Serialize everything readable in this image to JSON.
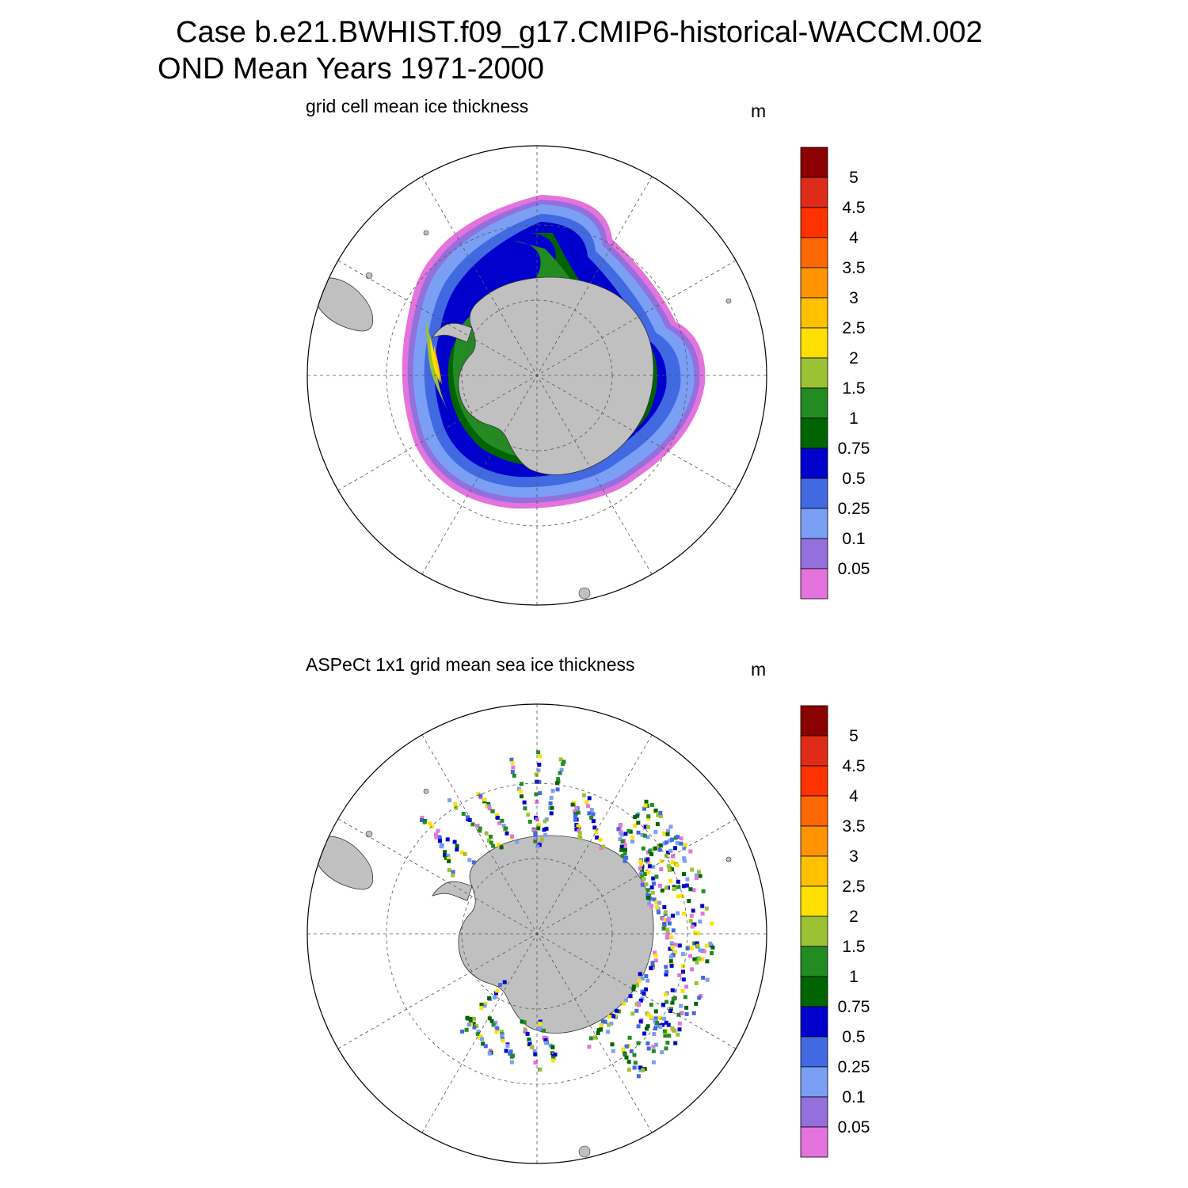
{
  "header": {
    "title_line1": "Case b.e21.BWHIST.f09_g17.CMIP6-historical-WACCM.002",
    "title_line2": "OND Mean   Years 1971-2000"
  },
  "panels": [
    {
      "title": "grid cell mean ice thickness",
      "units": "m"
    },
    {
      "title": "ASPeCt 1x1 grid mean sea ice thickness",
      "units": "m"
    }
  ],
  "colorbar": {
    "levels": [
      "0.05",
      "0.1",
      "0.25",
      "0.5",
      "0.75",
      "1",
      "1.5",
      "2",
      "2.5",
      "3",
      "3.5",
      "4",
      "4.5",
      "5"
    ],
    "colors": [
      "#e573dd",
      "#9370db",
      "#7a9ff5",
      "#4169e1",
      "#0000cd",
      "#006400",
      "#228b22",
      "#9bc232",
      "#ffe000",
      "#ffc000",
      "#ff9400",
      "#ff6800",
      "#ff3300",
      "#de2c18",
      "#8b0000"
    ]
  },
  "map_colors": {
    "land": "#c0c0c0",
    "coast": "#333333",
    "grid": "#555555"
  }
}
